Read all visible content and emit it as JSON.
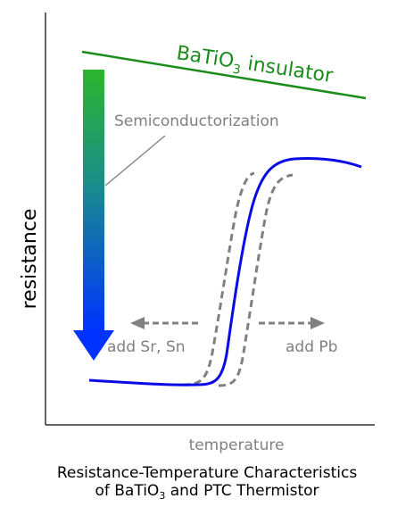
{
  "diagram": {
    "title_line1": "Resistance-Temperature Characteristics",
    "title_line2_prefix": "of BaTiO",
    "title_line2_subscript": "3",
    "title_line2_suffix": " and PTC Thermistor",
    "xlabel": "temperature",
    "ylabel": "resistance",
    "insulator_label_prefix": "BaTiO",
    "insulator_label_subscript": "3",
    "insulator_label_suffix": " insulator",
    "arrow_label": "Semiconductorization",
    "shift_left_label": "add Sr, Sn",
    "shift_right_label": "add Pb"
  },
  "colors": {
    "insulator_line": "#1a8c1a",
    "ptc_curve": "#0a0ae6",
    "shifted_curves": "#808080",
    "gradient_top": "#2db52d",
    "gradient_bottom": "#0033ff",
    "axis": "#333333",
    "label_gray": "#808080"
  }
}
